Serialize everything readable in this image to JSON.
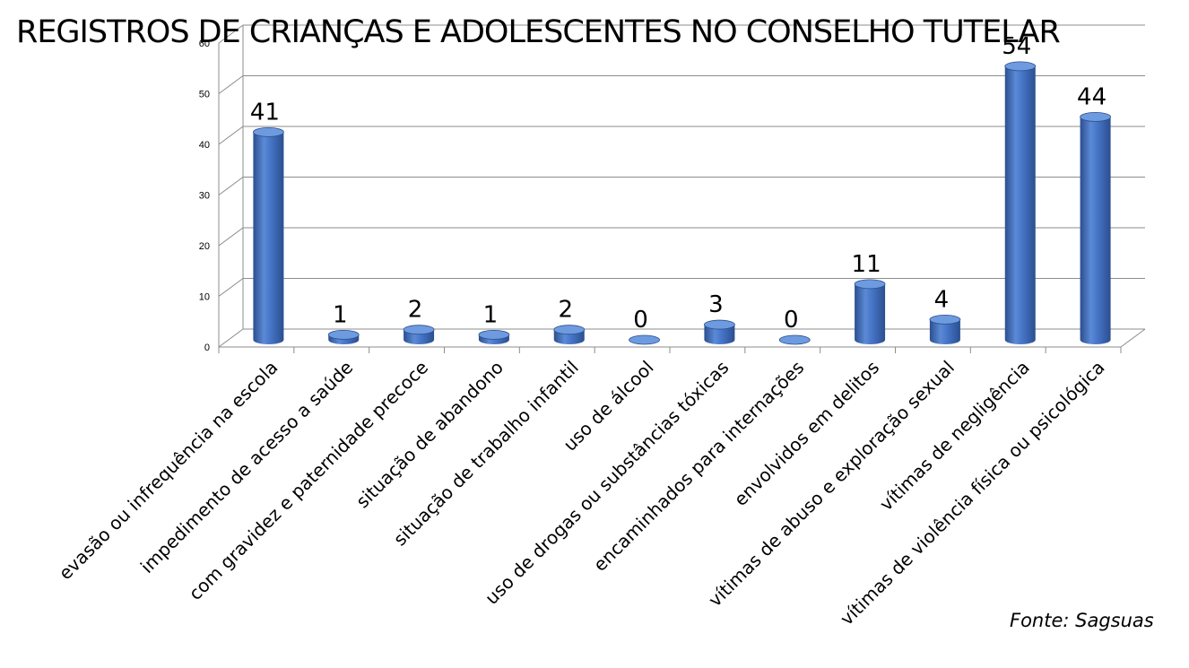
{
  "chart_data": {
    "type": "bar",
    "title": "REGISTROS DE CRIANÇAS E ADOLESCENTES NO CONSELHO TUTELAR",
    "categories": [
      "evasão ou infrequência na escola",
      "impedimento de acesso a saúde",
      "com gravidez e paternidade precoce",
      "situação de abandono",
      "situação de trabalho infantil",
      "uso de álcool",
      "uso de drogas ou substâncias tóxicas",
      "encaminhados para internações",
      "envolvidos em delitos",
      "vítimas de abuso e exploração sexual",
      "vítimas de negligência",
      "vítimas de violência física ou psicológica"
    ],
    "values": [
      41,
      1,
      2,
      1,
      2,
      0,
      3,
      0,
      11,
      4,
      54,
      44
    ],
    "data_labels": [
      "41",
      "1",
      "2",
      "1",
      "2",
      "0",
      "3",
      "0",
      "11",
      "4",
      "54",
      "44"
    ],
    "ylim": [
      0,
      60
    ],
    "yticks": [
      "0",
      "10",
      "20",
      "30",
      "40",
      "50",
      "60"
    ],
    "grid": true,
    "legend": "none",
    "source": "Fonte: Sagsuas",
    "colors": {
      "bar": "#4472C4",
      "bar_dark": "#2B4F8E",
      "bar_top": "#6E9BE0",
      "grid": "#7f7f7f"
    }
  }
}
